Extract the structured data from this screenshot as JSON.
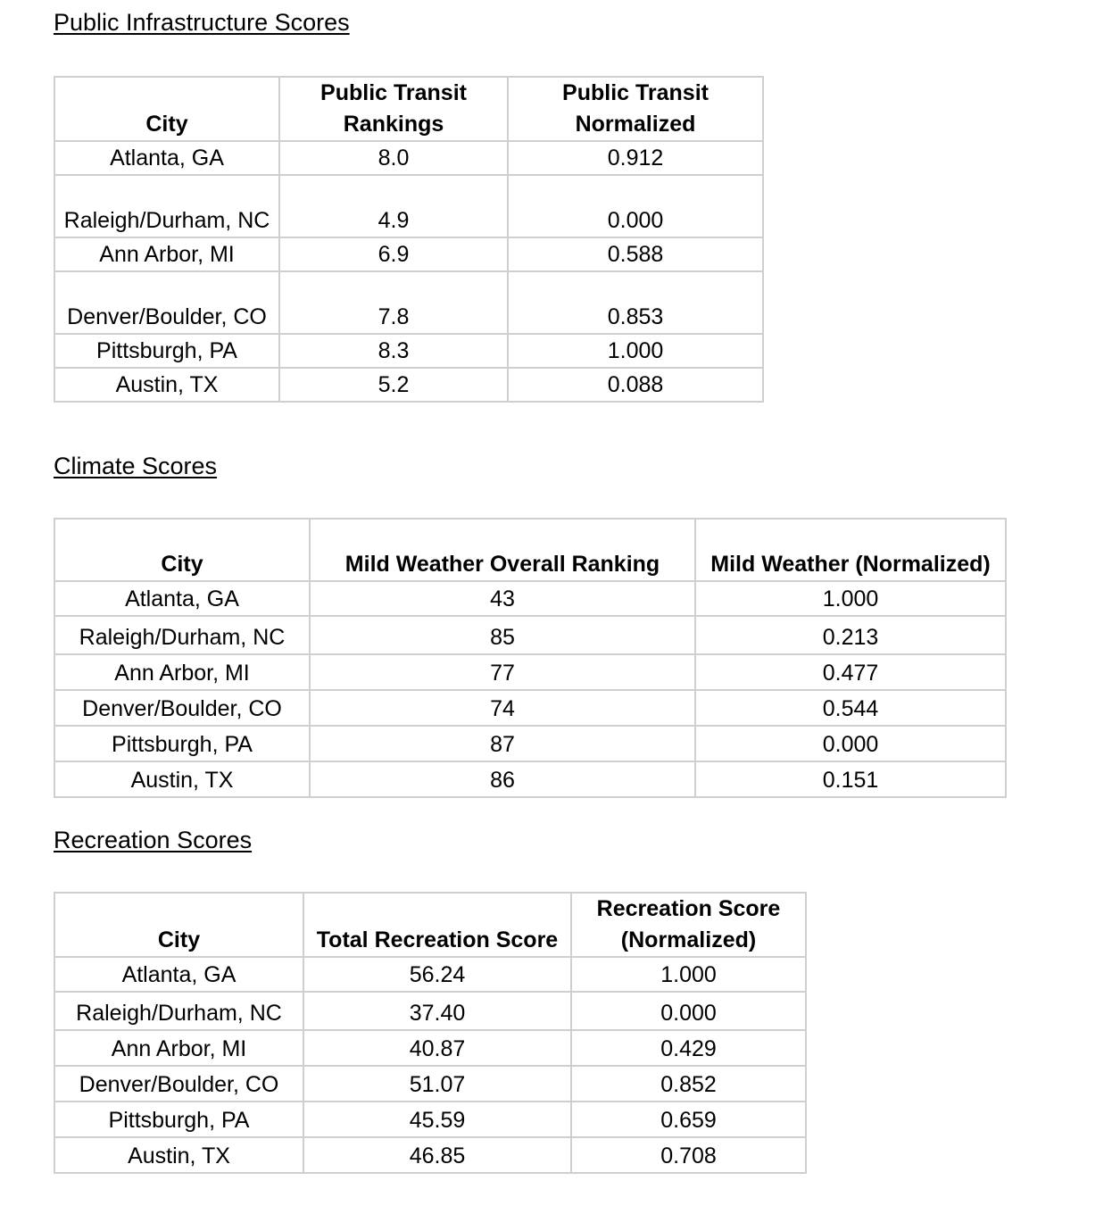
{
  "sections": [
    {
      "title": "Public Infrastructure Scores",
      "headers": [
        "City",
        "Public Transit Rankings",
        "Public Transit Normalized"
      ],
      "rows": [
        [
          "Atlanta, GA",
          "8.0",
          "0.912"
        ],
        [
          "Raleigh/Durham, NC",
          "4.9",
          "0.000"
        ],
        [
          "Ann Arbor, MI",
          "6.9",
          "0.588"
        ],
        [
          "Denver/Boulder, CO",
          "7.8",
          "0.853"
        ],
        [
          "Pittsburgh, PA",
          "8.3",
          "1.000"
        ],
        [
          "Austin, TX",
          "5.2",
          "0.088"
        ]
      ]
    },
    {
      "title": "Climate Scores",
      "headers": [
        "City",
        "Mild Weather Overall Ranking",
        "Mild Weather (Normalized)"
      ],
      "rows": [
        [
          "Atlanta, GA",
          "43",
          "1.000"
        ],
        [
          "Raleigh/Durham, NC",
          "85",
          "0.213"
        ],
        [
          "Ann Arbor, MI",
          "77",
          "0.477"
        ],
        [
          "Denver/Boulder, CO",
          "74",
          "0.544"
        ],
        [
          "Pittsburgh, PA",
          "87",
          "0.000"
        ],
        [
          "Austin, TX",
          "86",
          "0.151"
        ]
      ]
    },
    {
      "title": "Recreation Scores",
      "headers": [
        "City",
        "Total Recreation Score",
        "Recreation Score (Normalized)"
      ],
      "rows": [
        [
          "Atlanta, GA",
          "56.24",
          "1.000"
        ],
        [
          "Raleigh/Durham, NC",
          "37.40",
          "0.000"
        ],
        [
          "Ann Arbor, MI",
          "40.87",
          "0.429"
        ],
        [
          "Denver/Boulder, CO",
          "51.07",
          "0.852"
        ],
        [
          "Pittsburgh, PA",
          "45.59",
          "0.659"
        ],
        [
          "Austin, TX",
          "46.85",
          "0.708"
        ]
      ]
    }
  ]
}
